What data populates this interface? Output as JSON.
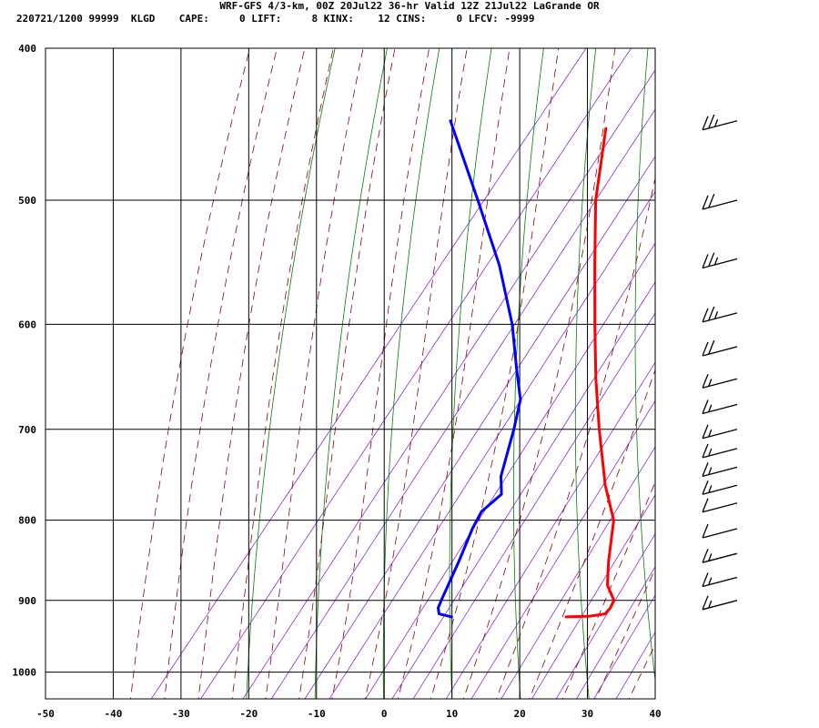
{
  "header": {
    "line1": "WRF-GFS 4/3-km, 00Z 20Jul22 36-hr Valid 12Z 21Jul22 LaGrande OR",
    "line2": "220721/1200 99999  KLGD    CAPE:     0 LIFT:     8 KINX:    12 CINS:     0 LFCV: -9999"
  },
  "chart_data": {
    "type": "line",
    "subtype": "skew-t log-p sounding",
    "title": "WRF-GFS 4/3-km, 00Z 20Jul22 36-hr Valid 12Z 21Jul22 LaGrande OR",
    "x_ticks": [
      -50,
      -40,
      -30,
      -20,
      -10,
      0,
      10,
      20,
      30,
      40
    ],
    "y_ticks": [
      400,
      500,
      600,
      700,
      800,
      900,
      1000
    ],
    "xlim": [
      -50,
      40
    ],
    "ylim": [
      1040,
      400
    ],
    "y_scale": "log",
    "grid": true,
    "colors": {
      "temperature": "#ff0000",
      "dewpoint": "#0000ff",
      "dry_adiabats": "#008000",
      "moist_adiabats": "#8b0000",
      "mixing_ratio": "#8a2be2",
      "grid": "#000000"
    },
    "series": [
      {
        "key": "temperature",
        "points": [
          {
            "p": 922,
            "t": 17.6
          },
          {
            "p": 921,
            "t": 21.0
          },
          {
            "p": 918,
            "t": 23.0
          },
          {
            "p": 910,
            "t": 23.1
          },
          {
            "p": 900,
            "t": 22.8
          },
          {
            "p": 880,
            "t": 20.1
          },
          {
            "p": 850,
            "t": 17.6
          },
          {
            "p": 800,
            "t": 13.7
          },
          {
            "p": 760,
            "t": 8.5
          },
          {
            "p": 700,
            "t": 1.3
          },
          {
            "p": 650,
            "t": -4.9
          },
          {
            "p": 600,
            "t": -11.2
          },
          {
            "p": 550,
            "t": -17.9
          },
          {
            "p": 500,
            "t": -25.1
          },
          {
            "p": 450,
            "t": -31.7
          }
        ]
      },
      {
        "key": "dewpoint",
        "points": [
          {
            "p": 922,
            "t": 0.7
          },
          {
            "p": 918,
            "t": -1.5
          },
          {
            "p": 910,
            "t": -2.3
          },
          {
            "p": 900,
            "t": -2.7
          },
          {
            "p": 850,
            "t": -4.5
          },
          {
            "p": 810,
            "t": -6.2
          },
          {
            "p": 790,
            "t": -6.8
          },
          {
            "p": 770,
            "t": -5.8
          },
          {
            "p": 750,
            "t": -7.9
          },
          {
            "p": 700,
            "t": -11.3
          },
          {
            "p": 670,
            "t": -13.7
          },
          {
            "p": 640,
            "t": -17.8
          },
          {
            "p": 600,
            "t": -23.4
          },
          {
            "p": 550,
            "t": -32.0
          },
          {
            "p": 500,
            "t": -42.5
          },
          {
            "p": 445,
            "t": -55.5
          }
        ]
      }
    ],
    "wind_barbs_knots": [
      {
        "p": 445,
        "spd": 25
      },
      {
        "p": 500,
        "spd": 20
      },
      {
        "p": 545,
        "spd": 25
      },
      {
        "p": 590,
        "spd": 25
      },
      {
        "p": 620,
        "spd": 20
      },
      {
        "p": 650,
        "spd": 15
      },
      {
        "p": 675,
        "spd": 15
      },
      {
        "p": 700,
        "spd": 15
      },
      {
        "p": 720,
        "spd": 15
      },
      {
        "p": 740,
        "spd": 15
      },
      {
        "p": 760,
        "spd": 15
      },
      {
        "p": 780,
        "spd": 10
      },
      {
        "p": 810,
        "spd": 10
      },
      {
        "p": 840,
        "spd": 15
      },
      {
        "p": 870,
        "spd": 15
      },
      {
        "p": 900,
        "spd": 15
      }
    ]
  }
}
